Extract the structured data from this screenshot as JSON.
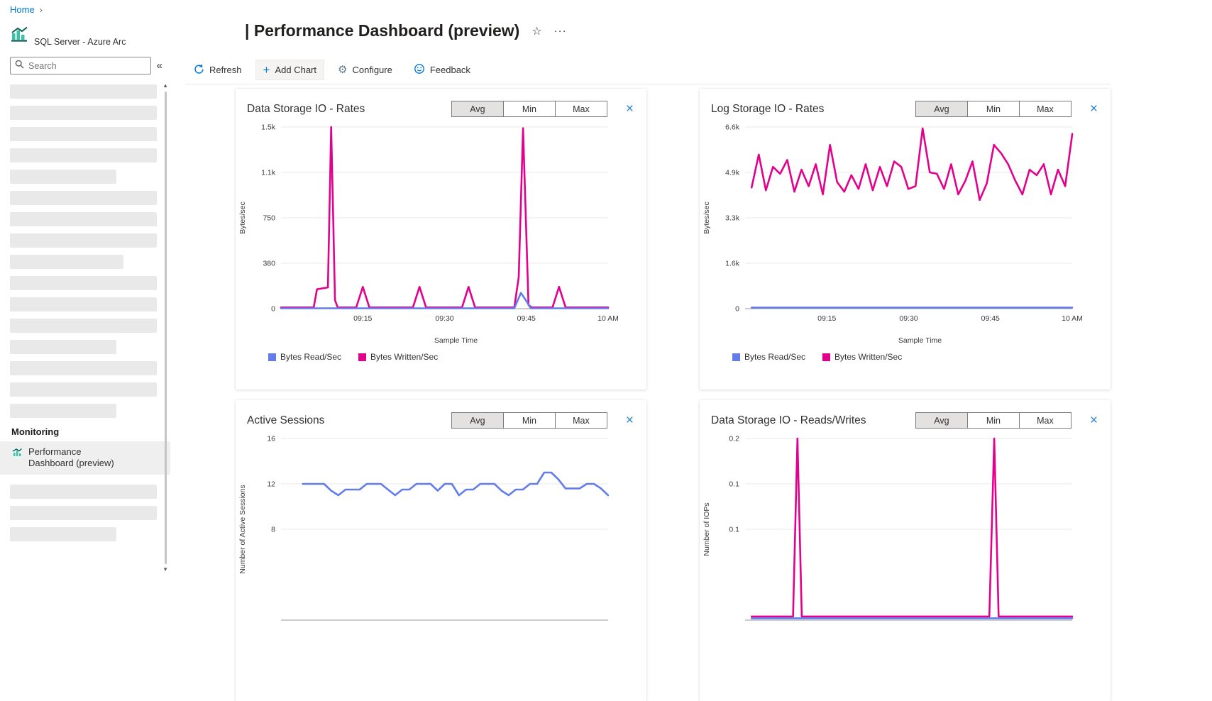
{
  "breadcrumb": {
    "home": "Home"
  },
  "icons": {
    "star": "☆",
    "more": "···",
    "collapse": "«",
    "crumb_sep": "›",
    "close": "×",
    "scroll_up": "▲",
    "scroll_down": "▼",
    "plus": "+",
    "gear": "⚙"
  },
  "sidebar": {
    "app_title": "SQL Server - Azure Arc",
    "search_placeholder": "Search",
    "monitoring_header": "Monitoring",
    "selected_item": "Performance Dashboard (preview)",
    "skeleton_top_widths": [
      207,
      207,
      207,
      207,
      150,
      207,
      207,
      207,
      160,
      207,
      207,
      207,
      150,
      207,
      207,
      150
    ],
    "skeleton_bottom_widths": [
      207,
      207,
      150
    ]
  },
  "header": {
    "title": "| Performance Dashboard (preview)"
  },
  "toolbar": {
    "refresh": "Refresh",
    "add_chart": "Add Chart",
    "configure": "Configure",
    "feedback": "Feedback"
  },
  "charts_common": {
    "toggles": [
      "Avg",
      "Min",
      "Max"
    ],
    "selected_toggle": 0
  },
  "colors": {
    "accent": "#0078d4",
    "magenta": "#e3008c",
    "blue": "#637ceb"
  },
  "chart_data": [
    {
      "type": "line",
      "title": "Data Storage IO - Rates",
      "ylabel": "Bytes/sec",
      "xlabel": "Sample Time",
      "xlim": [
        0,
        60
      ],
      "ylim": [
        0,
        1500
      ],
      "x_ticks": [
        {
          "v": 15,
          "label": "09:15"
        },
        {
          "v": 30,
          "label": "09:30"
        },
        {
          "v": 45,
          "label": "09:45"
        },
        {
          "v": 60,
          "label": "10 AM"
        }
      ],
      "y_ticks": [
        {
          "v": 0,
          "label": "0"
        },
        {
          "v": 375,
          "label": "380"
        },
        {
          "v": 750,
          "label": "750"
        },
        {
          "v": 1125,
          "label": "1.1k"
        },
        {
          "v": 1500,
          "label": "1.5k"
        }
      ],
      "legend": [
        {
          "label": "Bytes Read/Sec",
          "color": "#637ceb"
        },
        {
          "label": "Bytes Written/Sec",
          "color": "#e3008c"
        }
      ],
      "series": [
        {
          "name": "Bytes Written/Sec",
          "color": "#e3008c",
          "points": [
            [
              0,
              10
            ],
            [
              6,
              10
            ],
            [
              6.6,
              160
            ],
            [
              8.6,
              175
            ],
            [
              9.2,
              1500
            ],
            [
              9.9,
              70
            ],
            [
              10.4,
              10
            ],
            [
              13.8,
              10
            ],
            [
              15,
              180
            ],
            [
              16.2,
              10
            ],
            [
              24.2,
              10
            ],
            [
              25.4,
              180
            ],
            [
              26.6,
              10
            ],
            [
              33.2,
              10
            ],
            [
              34.4,
              180
            ],
            [
              35.6,
              10
            ],
            [
              42.8,
              10
            ],
            [
              43.6,
              260
            ],
            [
              44.4,
              1490
            ],
            [
              45.4,
              30
            ],
            [
              46,
              10
            ],
            [
              49.8,
              10
            ],
            [
              51,
              180
            ],
            [
              52.2,
              10
            ],
            [
              60,
              10
            ]
          ]
        },
        {
          "name": "Bytes Read/Sec",
          "color": "#637ceb",
          "points": [
            [
              0,
              3
            ],
            [
              42.8,
              3
            ],
            [
              44,
              130
            ],
            [
              44.9,
              70
            ],
            [
              45.8,
              3
            ],
            [
              60,
              3
            ]
          ]
        }
      ]
    },
    {
      "type": "line",
      "title": "Log Storage IO - Rates",
      "ylabel": "Bytes/sec",
      "xlabel": "Sample Time",
      "xlim": [
        0,
        60
      ],
      "ylim": [
        0,
        6600
      ],
      "x_ticks": [
        {
          "v": 15,
          "label": "09:15"
        },
        {
          "v": 30,
          "label": "09:30"
        },
        {
          "v": 45,
          "label": "09:45"
        },
        {
          "v": 60,
          "label": "10 AM"
        }
      ],
      "y_ticks": [
        {
          "v": 0,
          "label": "0"
        },
        {
          "v": 1650,
          "label": "1.6k"
        },
        {
          "v": 3300,
          "label": "3.3k"
        },
        {
          "v": 4950,
          "label": "4.9k"
        },
        {
          "v": 6600,
          "label": "6.6k"
        }
      ],
      "legend": [
        {
          "label": "Bytes Read/Sec",
          "color": "#637ceb"
        },
        {
          "label": "Bytes Written/Sec",
          "color": "#e3008c"
        }
      ],
      "series": [
        {
          "name": "Bytes Written/Sec",
          "color": "#e3008c",
          "x_start": 1.2,
          "x_step": 1.307,
          "values": [
            4400,
            5600,
            4300,
            5150,
            4900,
            5400,
            4250,
            5050,
            4450,
            5250,
            4150,
            5950,
            4600,
            4250,
            4850,
            4350,
            5250,
            4300,
            5150,
            4450,
            5350,
            5150,
            4350,
            4450,
            6550,
            4950,
            4900,
            4350,
            5250,
            4150,
            4650,
            5350,
            3950,
            4550,
            5950,
            5650,
            5250,
            4650,
            4150,
            5050,
            4850,
            5250,
            4150,
            5050,
            4450,
            6350
          ]
        },
        {
          "name": "Bytes Read/Sec",
          "color": "#637ceb",
          "points": [
            [
              1.2,
              35
            ],
            [
              60,
              35
            ]
          ]
        }
      ]
    },
    {
      "type": "line",
      "title": "Active Sessions",
      "ylabel": "Number of Active Sessions",
      "xlabel": "",
      "xlim": [
        0,
        60
      ],
      "ylim": [
        0,
        16
      ],
      "y_ticks": [
        {
          "v": 16,
          "label": "16"
        },
        {
          "v": 12,
          "label": "12"
        },
        {
          "v": 8,
          "label": "8"
        }
      ],
      "series": [
        {
          "color": "#637ceb",
          "x_start": 4,
          "x_step": 1.302,
          "values": [
            12,
            12,
            12,
            12,
            11.4,
            11,
            11.5,
            11.5,
            11.5,
            12,
            12,
            12,
            11.5,
            11,
            11.5,
            11.5,
            12,
            12,
            12,
            11.4,
            12,
            12,
            11,
            11.5,
            11.5,
            12,
            12,
            12,
            11.4,
            11,
            11.5,
            11.5,
            12,
            12,
            13,
            13,
            12.4,
            11.6,
            11.6,
            11.6,
            12,
            12,
            11.6,
            11
          ]
        }
      ]
    },
    {
      "type": "line",
      "title": "Data Storage IO - Reads/Writes",
      "ylabel": "Number of IOPs",
      "xlabel": "",
      "xlim": [
        0,
        60
      ],
      "ylim": [
        0,
        0.2
      ],
      "y_ticks": [
        {
          "v": 0.2,
          "label": "0.2"
        },
        {
          "v": 0.15,
          "label": "0.1"
        },
        {
          "v": 0.1,
          "label": "0.1"
        }
      ],
      "series": [
        {
          "color": "#e3008c",
          "points": [
            [
              1.2,
              0.004
            ],
            [
              8.8,
              0.004
            ],
            [
              9.6,
              0.2
            ],
            [
              10.4,
              0.004
            ],
            [
              44.8,
              0.004
            ],
            [
              45.7,
              0.2
            ],
            [
              46.5,
              0.004
            ],
            [
              60,
              0.004
            ]
          ]
        },
        {
          "color": "#637ceb",
          "points": [
            [
              1.2,
              0.002
            ],
            [
              60,
              0.002
            ]
          ]
        }
      ]
    }
  ]
}
